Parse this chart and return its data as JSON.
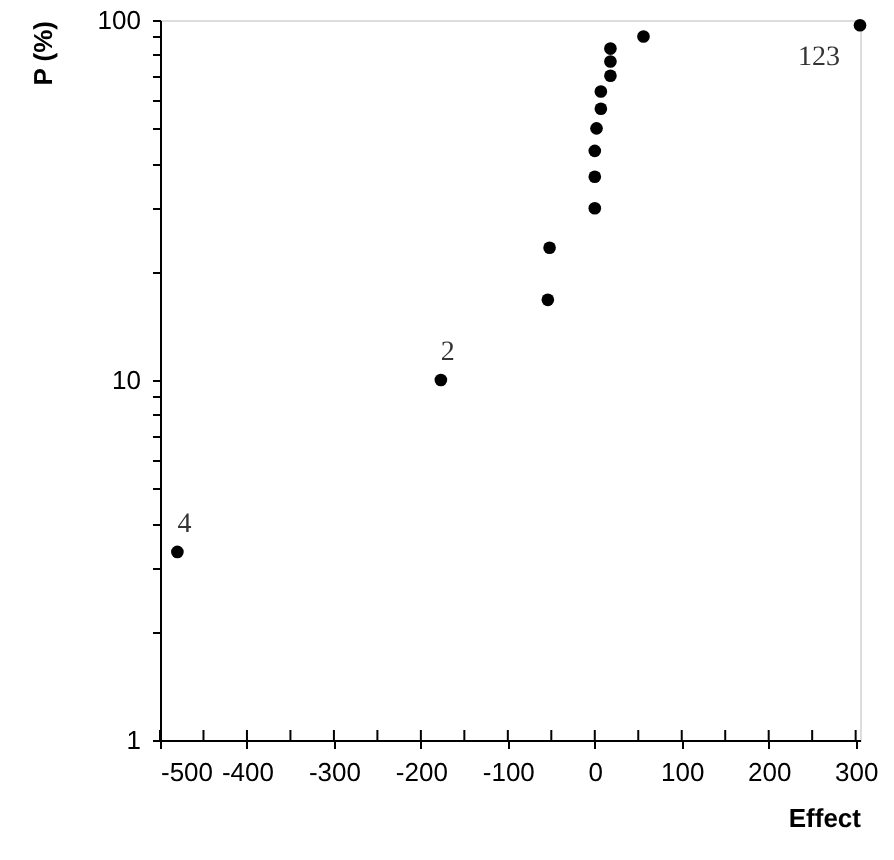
{
  "chart_data": {
    "type": "scatter",
    "xlabel": "Effect",
    "ylabel": "P (%)",
    "x": [
      -480,
      -177,
      -54,
      -52,
      0,
      0,
      0,
      2,
      7,
      7,
      18,
      18,
      18,
      56,
      305
    ],
    "values": [
      3.33,
      10,
      16.7,
      23.3,
      30,
      36.7,
      43.3,
      50,
      56.7,
      63.3,
      70,
      76.7,
      83.3,
      90,
      96.7
    ],
    "color": "#000000",
    "marker": "circle",
    "log": "y",
    "grid": false,
    "xlim": [
      -500,
      305
    ],
    "ylim": [
      1,
      100
    ],
    "xticks": [
      -500,
      {
        "value": -450,
        "label": null
      },
      -400,
      {
        "value": -350,
        "label": null
      },
      -300,
      {
        "value": -250,
        "label": null
      },
      -200,
      {
        "value": -150,
        "label": null
      },
      -100,
      {
        "value": -50,
        "label": null
      },
      0,
      {
        "value": 50,
        "label": null
      },
      100,
      {
        "value": 150,
        "label": null
      },
      200,
      {
        "value": 250,
        "label": null
      },
      300
    ],
    "yticks": [
      1,
      {
        "value": 2,
        "label": null
      },
      {
        "value": 3,
        "label": null
      },
      {
        "value": 4,
        "label": null
      },
      {
        "value": 5,
        "label": null
      },
      {
        "value": 6,
        "label": null
      },
      {
        "value": 7,
        "label": null
      },
      {
        "value": 8,
        "label": null
      },
      {
        "value": 9,
        "label": null
      },
      10,
      {
        "value": 20,
        "label": null
      },
      {
        "value": 30,
        "label": null
      },
      {
        "value": 40,
        "label": null
      },
      {
        "value": 50,
        "label": null
      },
      {
        "value": 60,
        "label": null
      },
      {
        "value": 70,
        "label": null
      },
      {
        "value": 80,
        "label": null
      },
      {
        "value": 90,
        "label": null
      },
      100
    ],
    "annotations": [
      {
        "text": "4",
        "x": -480,
        "y": 3.33
      },
      {
        "text": "2",
        "x": -177,
        "y": 10
      },
      {
        "text": "123",
        "x": 305,
        "y": 96.7
      }
    ]
  }
}
